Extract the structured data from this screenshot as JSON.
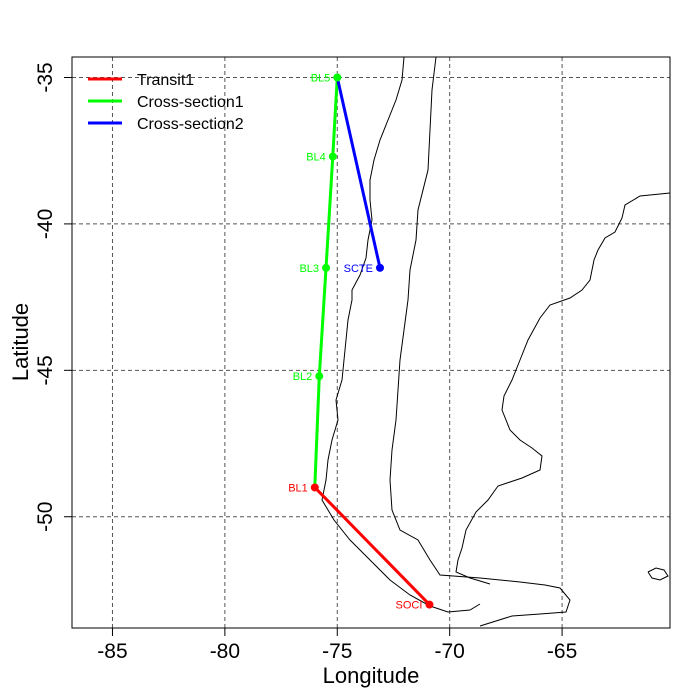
{
  "chart_data": {
    "type": "map",
    "title": "",
    "xlabel": "Longitude",
    "ylabel": "Latitude",
    "xlim": [
      -86.8,
      -60.2
    ],
    "ylim": [
      -53.8,
      -34.3
    ],
    "x_ticks": [
      {
        "value": -85,
        "label": "-85"
      },
      {
        "value": -80,
        "label": "-80"
      },
      {
        "value": -75,
        "label": "-75"
      },
      {
        "value": -70,
        "label": "-70"
      },
      {
        "value": -65,
        "label": "-65"
      }
    ],
    "y_ticks": [
      {
        "value": -35,
        "label": "-35"
      },
      {
        "value": -40,
        "label": "-40"
      },
      {
        "value": -45,
        "label": "-45"
      },
      {
        "value": -50,
        "label": "-50"
      }
    ],
    "grid": true,
    "legend": {
      "position": "top-left",
      "entries": [
        {
          "label": "Transit1",
          "color": "#ff0000"
        },
        {
          "label": "Cross-section1",
          "color": "#00ff00"
        },
        {
          "label": "Cross-section2",
          "color": "#0000ff"
        }
      ]
    },
    "series": [
      {
        "name": "Transit1",
        "color": "#ff0000",
        "stations": [
          "BL1",
          "SOCI"
        ]
      },
      {
        "name": "Cross-section1",
        "color": "#00ff00",
        "stations": [
          "BL1",
          "BL2",
          "BL3",
          "BL4",
          "BL5"
        ]
      },
      {
        "name": "Cross-section2",
        "color": "#0000ff",
        "stations": [
          "BL5",
          "SCTE"
        ]
      }
    ],
    "stations": [
      {
        "id": "BL5",
        "label": "BL5",
        "lon": -75.0,
        "lat": -35.0,
        "color": "#00ff00",
        "label_side": "left"
      },
      {
        "id": "BL4",
        "label": "BL4",
        "lon": -75.2,
        "lat": -37.7,
        "color": "#00ff00",
        "label_side": "left"
      },
      {
        "id": "BL3",
        "label": "BL3",
        "lon": -75.5,
        "lat": -41.5,
        "color": "#00ff00",
        "label_side": "left"
      },
      {
        "id": "BL2",
        "label": "BL2",
        "lon": -75.8,
        "lat": -45.2,
        "color": "#00ff00",
        "label_side": "left"
      },
      {
        "id": "BL1",
        "label": "BL1",
        "lon": -76.0,
        "lat": -49.0,
        "color": "#ff0000",
        "label_side": "left"
      },
      {
        "id": "SCTE",
        "label": "SCTE",
        "lon": -73.1,
        "lat": -41.5,
        "color": "#0000ff",
        "label_side": "left"
      },
      {
        "id": "SOCI",
        "label": "SOCI",
        "lon": -70.9,
        "lat": -53.0,
        "color": "#ff0000",
        "label_side": "left"
      }
    ]
  }
}
